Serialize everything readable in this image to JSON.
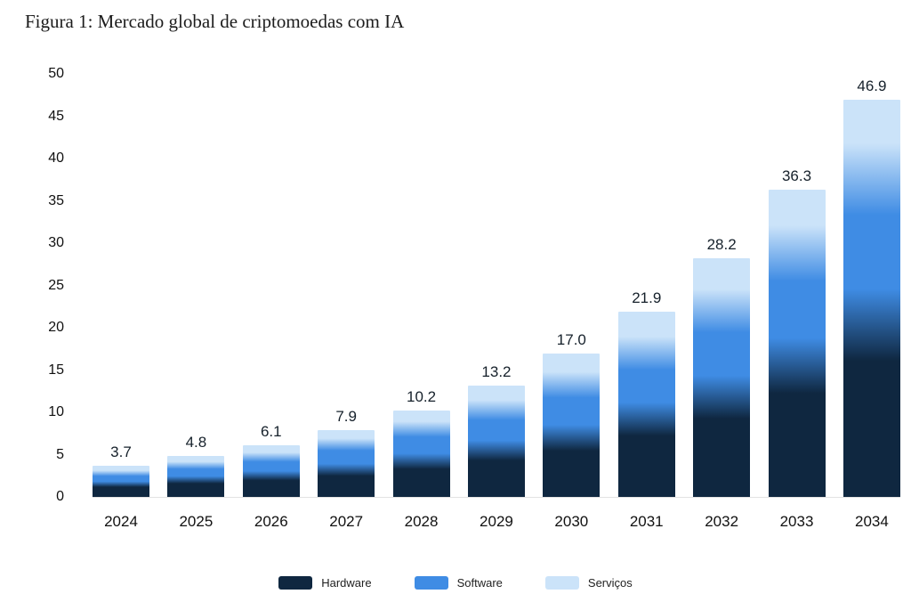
{
  "title": "Figura 1: Mercado global de criptomoedas com IA",
  "chart_data": {
    "type": "bar",
    "stacked": true,
    "title": "Figura 1: Mercado global de criptomoedas com IA",
    "categories": [
      "2024",
      "2025",
      "2026",
      "2027",
      "2028",
      "2029",
      "2030",
      "2031",
      "2032",
      "2033",
      "2034"
    ],
    "series": [
      {
        "name": "Hardware",
        "color": "#0f2740",
        "values": [
          1.5,
          2.0,
          2.5,
          3.2,
          4.2,
          5.5,
          7.0,
          9.2,
          11.8,
          15.5,
          20.3
        ]
      },
      {
        "name": "Software",
        "color": "#3f8ce4",
        "values": [
          1.3,
          1.7,
          2.2,
          3.0,
          3.8,
          4.8,
          6.3,
          7.8,
          10.2,
          13.3,
          17.2
        ]
      },
      {
        "name": "Serviços",
        "color": "#cbe3f9",
        "values": [
          0.9,
          1.1,
          1.4,
          1.7,
          2.2,
          2.9,
          3.7,
          4.9,
          6.2,
          7.5,
          9.4
        ]
      }
    ],
    "totals": [
      3.7,
      4.8,
      6.1,
      7.9,
      10.2,
      13.2,
      17.0,
      21.9,
      28.2,
      36.3,
      46.9
    ],
    "total_labels": [
      "3.7",
      "4.8",
      "6.1",
      "7.9",
      "10.2",
      "13.2",
      "17.0",
      "21.9",
      "28.2",
      "36.3",
      "46.9"
    ],
    "xlabel": "",
    "ylabel": "",
    "ylim": [
      0,
      50
    ],
    "yticks": [
      0,
      5,
      10,
      15,
      20,
      25,
      30,
      35,
      40,
      45,
      50
    ],
    "grid": false,
    "legend_position": "bottom"
  }
}
